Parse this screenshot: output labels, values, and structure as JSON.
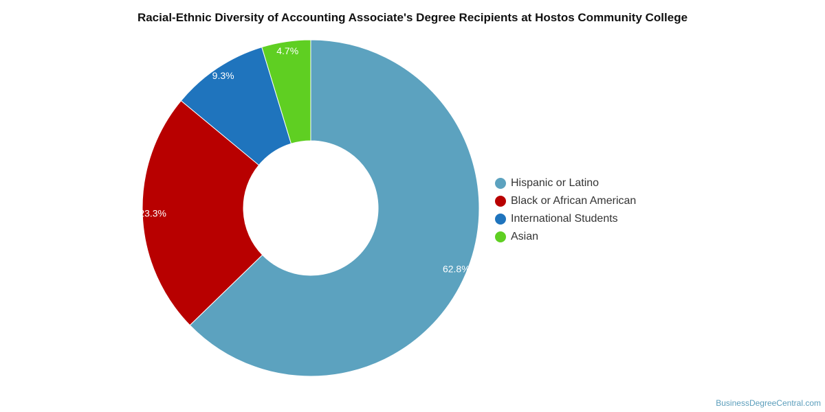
{
  "chart_data": {
    "type": "pie",
    "donut": true,
    "title": "Racial-Ethnic Diversity of Accounting Associate's Degree Recipients at Hostos Community College",
    "slices": [
      {
        "name": "Hispanic or Latino",
        "value": 62.8,
        "label": "62.8%",
        "color": "#5ca2bf"
      },
      {
        "name": "Black or African American",
        "value": 23.3,
        "label": "23.3%",
        "color": "#b80000"
      },
      {
        "name": "International Students",
        "value": 9.3,
        "label": "9.3%",
        "color": "#1f74bd"
      },
      {
        "name": "Asian",
        "value": 4.7,
        "label": "4.7%",
        "color": "#5fcf22"
      }
    ],
    "legend_position": "right"
  },
  "watermark": "BusinessDegreeCentral.com"
}
